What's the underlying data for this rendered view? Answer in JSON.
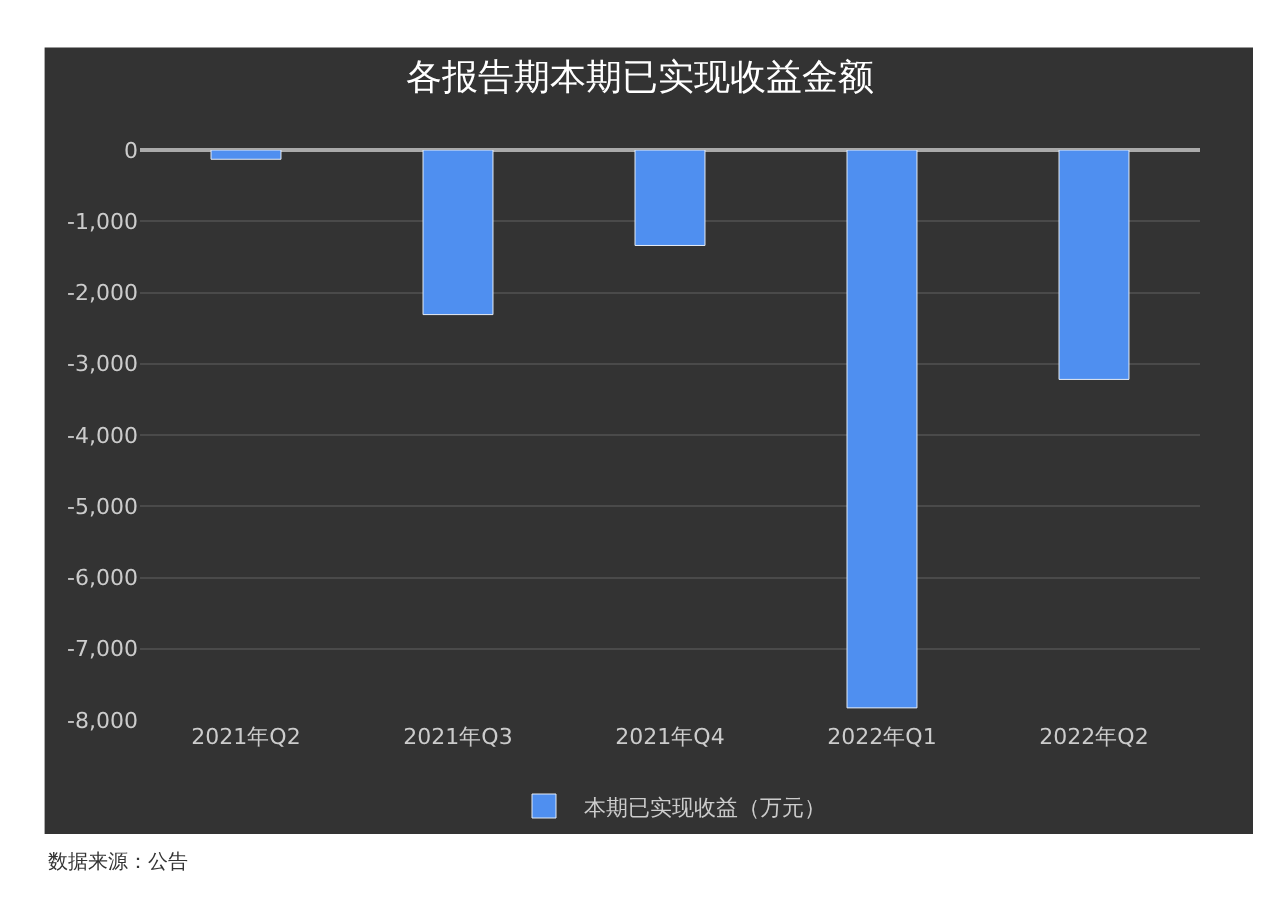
{
  "chart_data": {
    "type": "bar",
    "title": "各报告期本期已实现收益金额",
    "categories": [
      "2021年Q2",
      "2021年Q3",
      "2021年Q4",
      "2022年Q1",
      "2022年Q2"
    ],
    "series": [
      {
        "name": "本期已实现收益（万元）",
        "color": "#4f8ff0",
        "values": [
          -130,
          -2310,
          -1340,
          -7830,
          -3220
        ]
      }
    ],
    "ylim": [
      -8000,
      0
    ],
    "yticks": [
      {
        "value": 0,
        "label": "0"
      },
      {
        "value": -1000,
        "label": "-1,000"
      },
      {
        "value": -2000,
        "label": "-2,000"
      },
      {
        "value": -3000,
        "label": "-3,000"
      },
      {
        "value": -4000,
        "label": "-4,000"
      },
      {
        "value": -5000,
        "label": "-5,000"
      },
      {
        "value": -6000,
        "label": "-6,000"
      },
      {
        "value": -7000,
        "label": "-7,000"
      },
      {
        "value": -8000,
        "label": "-8,000"
      }
    ],
    "grid": "y",
    "legend": "bottom",
    "annotations": [
      "数据来源：公告"
    ]
  }
}
